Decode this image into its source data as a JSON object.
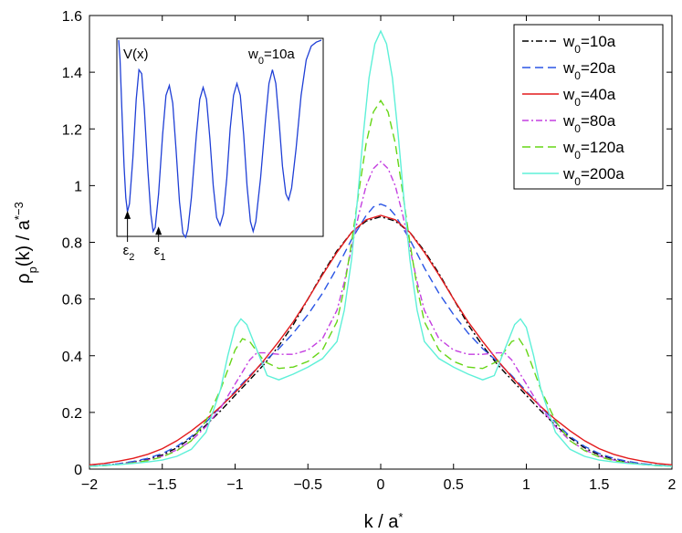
{
  "chart_data": {
    "type": "line",
    "title": "",
    "xlabel_main": "k / a",
    "xlabel_sup": "*",
    "ylabel_main": "ρ",
    "ylabel_sub": "p",
    "ylabel_mid": "(k) / a",
    "ylabel_sup": "*−3",
    "xlim": [
      -2,
      2
    ],
    "ylim": [
      0,
      1.6
    ],
    "xticks": [
      {
        "value": -2,
        "label": "−2"
      },
      {
        "value": -1.5,
        "label": "−1.5"
      },
      {
        "value": -1,
        "label": "−1"
      },
      {
        "value": -0.5,
        "label": "−0.5"
      },
      {
        "value": 0,
        "label": "0"
      },
      {
        "value": 0.5,
        "label": "0.5"
      },
      {
        "value": 1,
        "label": "1"
      },
      {
        "value": 1.5,
        "label": "1.5"
      },
      {
        "value": 2,
        "label": "2"
      }
    ],
    "yticks": [
      {
        "value": 0,
        "label": "0"
      },
      {
        "value": 0.2,
        "label": "0.2"
      },
      {
        "value": 0.4,
        "label": "0.4"
      },
      {
        "value": 0.6,
        "label": "0.6"
      },
      {
        "value": 0.8,
        "label": "0.8"
      },
      {
        "value": 1.0,
        "label": "1"
      },
      {
        "value": 1.2,
        "label": "1.2"
      },
      {
        "value": 1.4,
        "label": "1.4"
      },
      {
        "value": 1.6,
        "label": "1.6"
      }
    ],
    "legend_position": "top-right",
    "series": [
      {
        "name": "w0=10a",
        "w_label": "w",
        "sub": "0",
        "tail": "=10a",
        "color": "#000000",
        "dash": "7,3,2,3",
        "points": [
          [
            0,
            0.89
          ],
          [
            0.1,
            0.875
          ],
          [
            0.2,
            0.835
          ],
          [
            0.3,
            0.77
          ],
          [
            0.4,
            0.69
          ],
          [
            0.5,
            0.6
          ],
          [
            0.6,
            0.51
          ],
          [
            0.7,
            0.435
          ],
          [
            0.8,
            0.37
          ],
          [
            0.9,
            0.315
          ],
          [
            1.0,
            0.26
          ],
          [
            1.1,
            0.205
          ],
          [
            1.2,
            0.155
          ],
          [
            1.3,
            0.11
          ],
          [
            1.4,
            0.075
          ],
          [
            1.5,
            0.05
          ],
          [
            1.6,
            0.035
          ],
          [
            1.7,
            0.025
          ],
          [
            1.8,
            0.018
          ],
          [
            1.9,
            0.014
          ],
          [
            2.0,
            0.01
          ]
        ]
      },
      {
        "name": "w0=20a",
        "w_label": "w",
        "sub": "0",
        "tail": "=20a",
        "color": "#2a55e5",
        "dash": "9,5",
        "points": [
          [
            0,
            0.935
          ],
          [
            0.05,
            0.925
          ],
          [
            0.1,
            0.895
          ],
          [
            0.2,
            0.81
          ],
          [
            0.3,
            0.71
          ],
          [
            0.4,
            0.62
          ],
          [
            0.5,
            0.545
          ],
          [
            0.6,
            0.48
          ],
          [
            0.7,
            0.425
          ],
          [
            0.8,
            0.38
          ],
          [
            0.9,
            0.33
          ],
          [
            1.0,
            0.275
          ],
          [
            1.1,
            0.22
          ],
          [
            1.2,
            0.165
          ],
          [
            1.3,
            0.115
          ],
          [
            1.4,
            0.08
          ],
          [
            1.5,
            0.055
          ],
          [
            1.6,
            0.038
          ],
          [
            1.7,
            0.027
          ],
          [
            1.8,
            0.019
          ],
          [
            1.9,
            0.014
          ],
          [
            2.0,
            0.01
          ]
        ]
      },
      {
        "name": "w0=40a",
        "w_label": "w",
        "sub": "0",
        "tail": "=40a",
        "color": "#e31a1c",
        "dash": "",
        "points": [
          [
            0,
            0.895
          ],
          [
            0.1,
            0.88
          ],
          [
            0.2,
            0.835
          ],
          [
            0.3,
            0.765
          ],
          [
            0.4,
            0.685
          ],
          [
            0.5,
            0.6
          ],
          [
            0.6,
            0.52
          ],
          [
            0.7,
            0.45
          ],
          [
            0.8,
            0.385
          ],
          [
            0.9,
            0.325
          ],
          [
            1.0,
            0.27
          ],
          [
            1.1,
            0.22
          ],
          [
            1.2,
            0.175
          ],
          [
            1.3,
            0.135
          ],
          [
            1.4,
            0.1
          ],
          [
            1.5,
            0.072
          ],
          [
            1.6,
            0.052
          ],
          [
            1.7,
            0.038
          ],
          [
            1.8,
            0.028
          ],
          [
            1.9,
            0.02
          ],
          [
            2.0,
            0.015
          ]
        ]
      },
      {
        "name": "w0=80a",
        "w_label": "w",
        "sub": "0",
        "tail": "=80a",
        "color": "#c43fe0",
        "dash": "7,3,2,3",
        "points": [
          [
            0,
            1.085
          ],
          [
            0.05,
            1.06
          ],
          [
            0.1,
            1.0
          ],
          [
            0.15,
            0.9
          ],
          [
            0.2,
            0.78
          ],
          [
            0.25,
            0.66
          ],
          [
            0.3,
            0.56
          ],
          [
            0.4,
            0.46
          ],
          [
            0.5,
            0.42
          ],
          [
            0.6,
            0.405
          ],
          [
            0.7,
            0.405
          ],
          [
            0.8,
            0.41
          ],
          [
            0.85,
            0.41
          ],
          [
            0.9,
            0.385
          ],
          [
            1.0,
            0.3
          ],
          [
            1.1,
            0.215
          ],
          [
            1.2,
            0.15
          ],
          [
            1.3,
            0.1
          ],
          [
            1.4,
            0.068
          ],
          [
            1.5,
            0.046
          ],
          [
            1.6,
            0.032
          ],
          [
            1.7,
            0.023
          ],
          [
            1.8,
            0.017
          ],
          [
            1.9,
            0.013
          ],
          [
            2.0,
            0.01
          ]
        ]
      },
      {
        "name": "w0=120a",
        "w_label": "w",
        "sub": "0",
        "tail": "=120a",
        "color": "#66d617",
        "dash": "9,5",
        "points": [
          [
            0,
            1.3
          ],
          [
            0.05,
            1.26
          ],
          [
            0.1,
            1.15
          ],
          [
            0.15,
            0.98
          ],
          [
            0.2,
            0.8
          ],
          [
            0.25,
            0.64
          ],
          [
            0.3,
            0.52
          ],
          [
            0.4,
            0.42
          ],
          [
            0.5,
            0.38
          ],
          [
            0.6,
            0.36
          ],
          [
            0.7,
            0.355
          ],
          [
            0.8,
            0.38
          ],
          [
            0.9,
            0.45
          ],
          [
            0.95,
            0.46
          ],
          [
            1.0,
            0.42
          ],
          [
            1.1,
            0.28
          ],
          [
            1.2,
            0.17
          ],
          [
            1.3,
            0.1
          ],
          [
            1.4,
            0.065
          ],
          [
            1.5,
            0.043
          ],
          [
            1.6,
            0.03
          ],
          [
            1.7,
            0.022
          ],
          [
            1.8,
            0.016
          ],
          [
            1.9,
            0.012
          ],
          [
            2.0,
            0.01
          ]
        ]
      },
      {
        "name": "w0=200a",
        "w_label": "w",
        "sub": "0",
        "tail": "=200a",
        "color": "#5ef0d8",
        "dash": "",
        "points": [
          [
            0,
            1.545
          ],
          [
            0.04,
            1.5
          ],
          [
            0.08,
            1.38
          ],
          [
            0.12,
            1.18
          ],
          [
            0.16,
            0.95
          ],
          [
            0.2,
            0.74
          ],
          [
            0.25,
            0.56
          ],
          [
            0.3,
            0.45
          ],
          [
            0.4,
            0.39
          ],
          [
            0.5,
            0.36
          ],
          [
            0.6,
            0.335
          ],
          [
            0.7,
            0.315
          ],
          [
            0.78,
            0.33
          ],
          [
            0.85,
            0.42
          ],
          [
            0.92,
            0.51
          ],
          [
            0.96,
            0.53
          ],
          [
            1.0,
            0.5
          ],
          [
            1.05,
            0.4
          ],
          [
            1.1,
            0.28
          ],
          [
            1.2,
            0.13
          ],
          [
            1.3,
            0.07
          ],
          [
            1.4,
            0.045
          ],
          [
            1.5,
            0.032
          ],
          [
            1.6,
            0.025
          ],
          [
            1.7,
            0.02
          ],
          [
            1.8,
            0.016
          ],
          [
            1.9,
            0.013
          ],
          [
            2.0,
            0.01
          ]
        ]
      }
    ],
    "inset": {
      "label_vx": "V(x)",
      "label_w": "w",
      "label_w_sub": "0",
      "label_w_tail": "=10a",
      "eps2": "ε",
      "eps2_sub": "2",
      "eps1": "ε",
      "eps1_sub": "1",
      "curve_color": "#1f3fd6",
      "x_range": [
        0,
        6
      ],
      "y_range": [
        0,
        1
      ],
      "curve": [
        [
          0,
          1.0
        ],
        [
          0.04,
          0.9
        ],
        [
          0.1,
          0.62
        ],
        [
          0.16,
          0.36
        ],
        [
          0.21,
          0.2
        ],
        [
          0.26,
          0.13
        ],
        [
          0.32,
          0.17
        ],
        [
          0.42,
          0.4
        ],
        [
          0.52,
          0.7
        ],
        [
          0.6,
          0.85
        ],
        [
          0.68,
          0.83
        ],
        [
          0.76,
          0.65
        ],
        [
          0.86,
          0.35
        ],
        [
          0.95,
          0.12
        ],
        [
          1.02,
          0.03
        ],
        [
          1.08,
          0.05
        ],
        [
          1.18,
          0.22
        ],
        [
          1.3,
          0.52
        ],
        [
          1.4,
          0.72
        ],
        [
          1.5,
          0.77
        ],
        [
          1.6,
          0.68
        ],
        [
          1.7,
          0.44
        ],
        [
          1.8,
          0.18
        ],
        [
          1.9,
          0.02
        ],
        [
          1.98,
          0.0
        ],
        [
          2.05,
          0.04
        ],
        [
          2.15,
          0.2
        ],
        [
          2.3,
          0.52
        ],
        [
          2.4,
          0.7
        ],
        [
          2.5,
          0.76
        ],
        [
          2.6,
          0.7
        ],
        [
          2.7,
          0.5
        ],
        [
          2.8,
          0.26
        ],
        [
          2.9,
          0.1
        ],
        [
          3.0,
          0.06
        ],
        [
          3.1,
          0.12
        ],
        [
          3.2,
          0.3
        ],
        [
          3.3,
          0.55
        ],
        [
          3.4,
          0.72
        ],
        [
          3.5,
          0.78
        ],
        [
          3.6,
          0.72
        ],
        [
          3.7,
          0.52
        ],
        [
          3.8,
          0.26
        ],
        [
          3.9,
          0.08
        ],
        [
          3.98,
          0.03
        ],
        [
          4.06,
          0.08
        ],
        [
          4.2,
          0.3
        ],
        [
          4.35,
          0.6
        ],
        [
          4.45,
          0.78
        ],
        [
          4.55,
          0.85
        ],
        [
          4.65,
          0.78
        ],
        [
          4.75,
          0.58
        ],
        [
          4.85,
          0.36
        ],
        [
          4.95,
          0.22
        ],
        [
          5.03,
          0.19
        ],
        [
          5.12,
          0.25
        ],
        [
          5.25,
          0.45
        ],
        [
          5.4,
          0.72
        ],
        [
          5.55,
          0.9
        ],
        [
          5.7,
          0.97
        ],
        [
          5.85,
          0.99
        ],
        [
          6.0,
          1.0
        ]
      ],
      "eps2_x": 0.26,
      "eps2_y": 0.13,
      "eps1_x": 1.18,
      "eps1_y": 0.05
    }
  }
}
